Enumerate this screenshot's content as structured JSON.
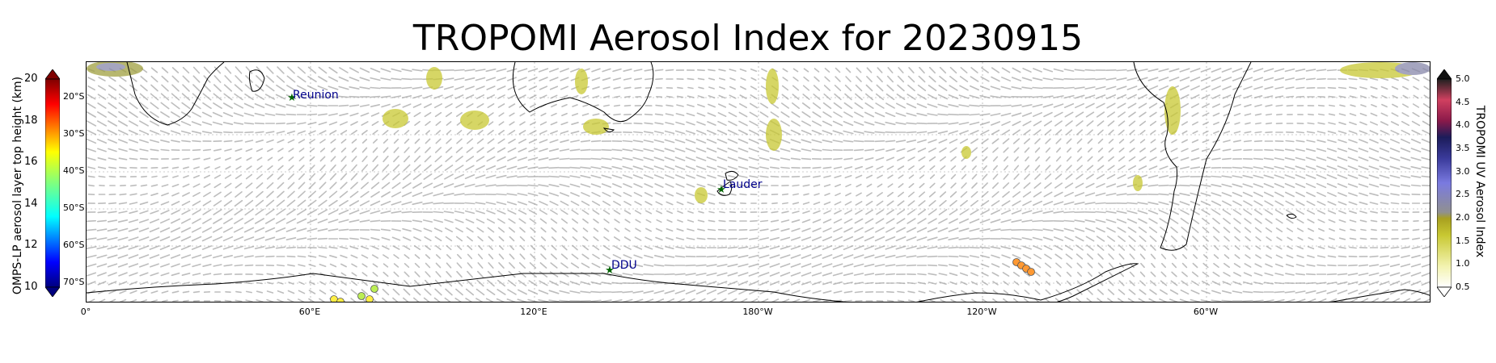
{
  "title": "TROPOMI Aerosol Index for 20230915",
  "map": {
    "lat_labels": [
      "20°S",
      "30°S",
      "40°S",
      "50°S",
      "60°S",
      "70°S"
    ],
    "lon_labels": [
      "0°",
      "60°E",
      "120°E",
      "180°W",
      "120°W",
      "60°W"
    ],
    "sites": [
      {
        "name": "Reunion"
      },
      {
        "name": "Lauder"
      },
      {
        "name": "DDU"
      }
    ]
  },
  "left_colorbar": {
    "label": "OMPS-LP aerosol layer top height (km)",
    "ticks": [
      "20",
      "18",
      "16",
      "14",
      "12",
      "10"
    ],
    "range": [
      10,
      20
    ]
  },
  "right_colorbar": {
    "label": "TROPOMI UV Aerosol Index",
    "ticks": [
      "5.0",
      "4.5",
      "4.0",
      "3.5",
      "3.0",
      "2.5",
      "2.0",
      "1.5",
      "1.0",
      "0.5"
    ],
    "range": [
      0.5,
      5.0
    ]
  },
  "colors": {
    "aerosol_low": "#c8c832",
    "aerosol_mid": "#808000",
    "arrow": "#bdbdbd",
    "site_star": "#006400",
    "site_label": "#00008b"
  }
}
